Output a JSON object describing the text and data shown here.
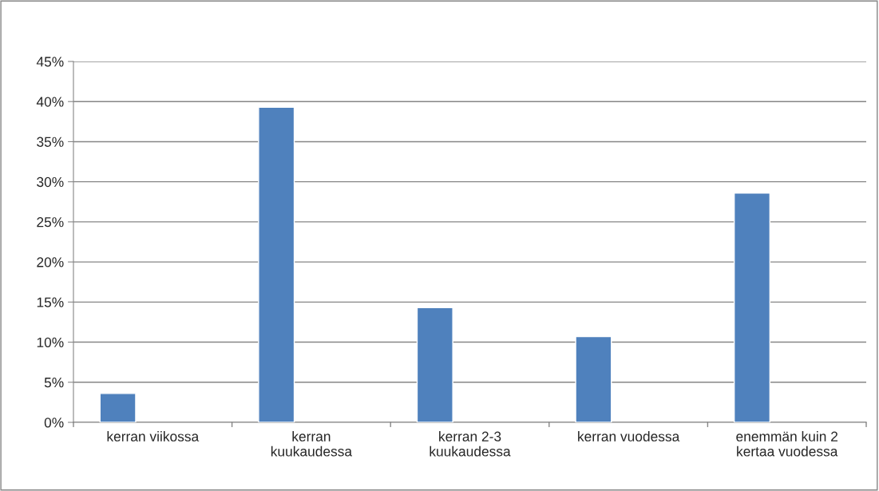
{
  "chart_data": {
    "type": "bar",
    "categories": [
      "kerran viikossa",
      "kerran\nkuukaudessa",
      "kerran 2-3\nkuukaudessa",
      "kerran vuodessa",
      "enemmän kuin 2\nkertaa vuodessa"
    ],
    "values": [
      3.6,
      39.3,
      14.3,
      10.7,
      28.6
    ],
    "color": "#4f81bd",
    "ylim": [
      0,
      45
    ],
    "yticks": [
      {
        "value": 0,
        "label": "0%"
      },
      {
        "value": 5,
        "label": "5%"
      },
      {
        "value": 10,
        "label": "10%"
      },
      {
        "value": 15,
        "label": "15%"
      },
      {
        "value": 20,
        "label": "20%"
      },
      {
        "value": 25,
        "label": "25%"
      },
      {
        "value": 30,
        "label": "30%"
      },
      {
        "value": 35,
        "label": "35%"
      },
      {
        "value": 40,
        "label": "40%"
      },
      {
        "value": 45,
        "label": "45%"
      }
    ],
    "grid": "y",
    "legend": false
  }
}
